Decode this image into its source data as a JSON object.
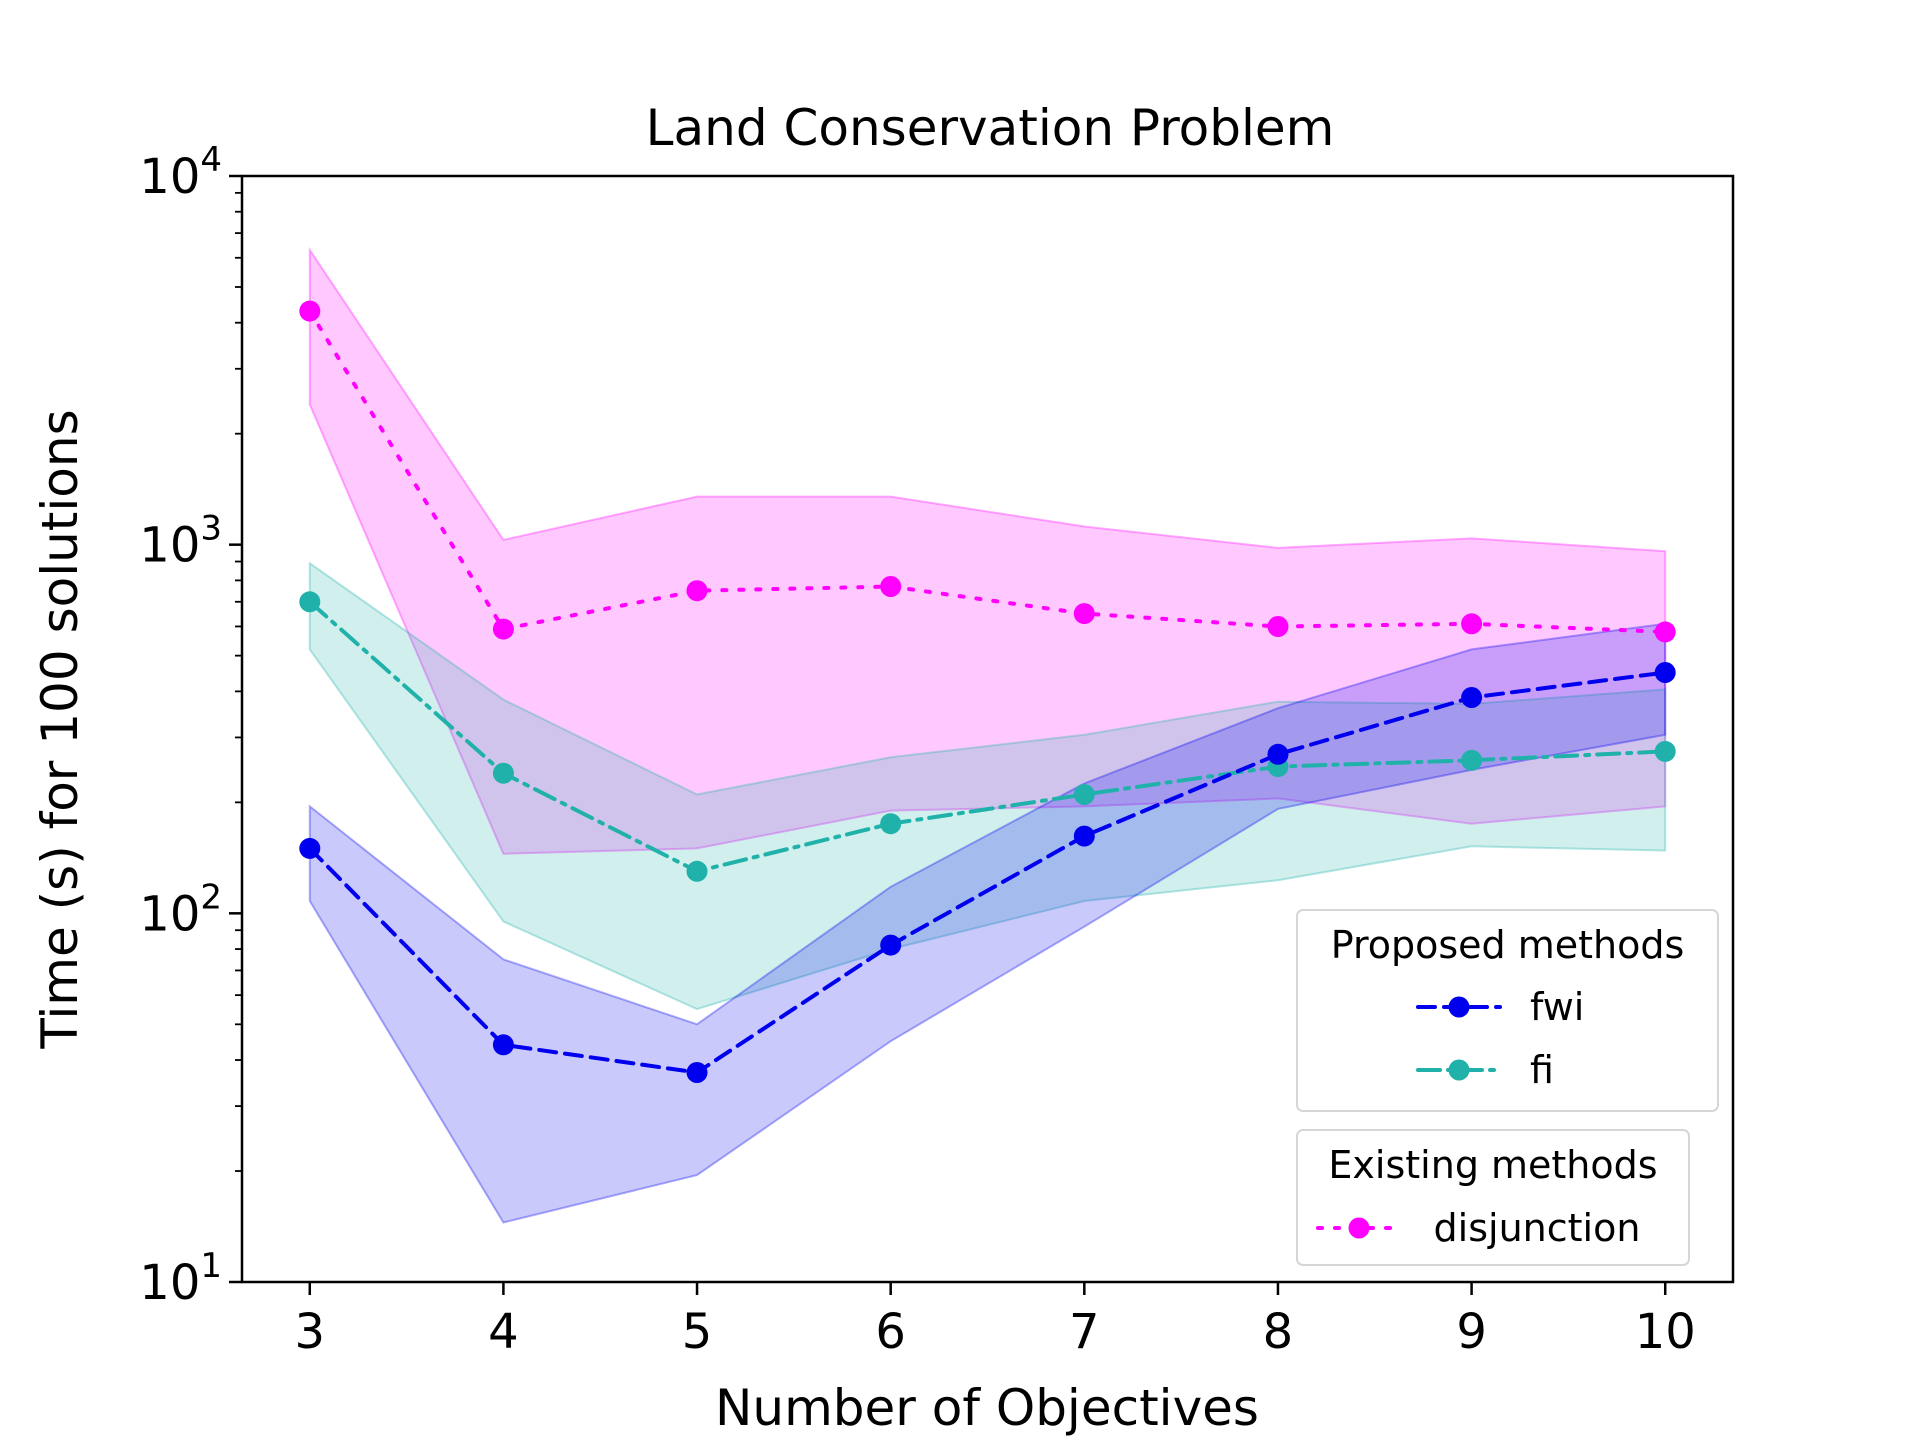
{
  "chart_data": {
    "type": "line",
    "title": "Land Conservation Problem",
    "xlabel": "Number of Objectives",
    "ylabel": "Time (s) for 100 solutions",
    "x": [
      3,
      4,
      5,
      6,
      7,
      8,
      9,
      10
    ],
    "xlim": [
      2.65,
      10.35
    ],
    "ylim": [
      10,
      10000
    ],
    "yscale": "log",
    "xticks": [
      "3",
      "4",
      "5",
      "6",
      "7",
      "8",
      "9",
      "10"
    ],
    "yticks": [
      {
        "value": 10,
        "base": "10",
        "exp": "1"
      },
      {
        "value": 100,
        "base": "10",
        "exp": "2"
      },
      {
        "value": 1000,
        "base": "10",
        "exp": "3"
      },
      {
        "value": 10000,
        "base": "10",
        "exp": "4"
      }
    ],
    "grid": false,
    "series": [
      {
        "name": "disjunction",
        "group": "existing",
        "color": "#ff00ff",
        "linestyle": "dotted",
        "values": [
          4300,
          590,
          750,
          770,
          650,
          600,
          610,
          580
        ],
        "band_upper": [
          6300,
          1030,
          1350,
          1350,
          1120,
          980,
          1040,
          960
        ],
        "band_lower": [
          2400,
          145,
          150,
          190,
          195,
          205,
          175,
          195
        ]
      },
      {
        "name": "fi",
        "group": "proposed",
        "color": "#20b2aa",
        "linestyle": "dashdot",
        "values": [
          700,
          240,
          130,
          175,
          210,
          250,
          260,
          275
        ],
        "band_upper": [
          890,
          380,
          210,
          265,
          305,
          375,
          370,
          405
        ],
        "band_lower": [
          520,
          95,
          55,
          80,
          108,
          123,
          152,
          148
        ]
      },
      {
        "name": "fwi",
        "group": "proposed",
        "color": "#0000ee",
        "linestyle": "dashed",
        "values": [
          150,
          44,
          37,
          82,
          162,
          270,
          385,
          450
        ],
        "band_upper": [
          195,
          75,
          50,
          118,
          225,
          360,
          520,
          610
        ],
        "band_lower": [
          108,
          14.5,
          19.5,
          45,
          92,
          192,
          245,
          305
        ]
      }
    ],
    "legend": {
      "placement": "lower-right",
      "groups": [
        {
          "title": "Proposed methods",
          "entries": [
            "fwi",
            "fi"
          ]
        },
        {
          "title": "Existing methods",
          "entries": [
            "disjunction"
          ]
        }
      ]
    }
  }
}
